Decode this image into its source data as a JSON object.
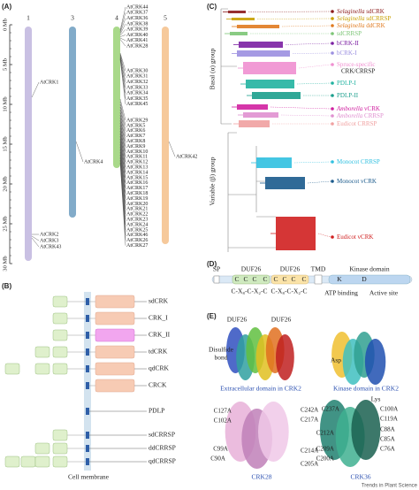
{
  "panel_a": {
    "label": "(A)",
    "axis": [
      "0 Mb",
      "5 Mb",
      "10 Mb",
      "15 Mb",
      "20 Mb",
      "25 Mb",
      "30 Mb"
    ],
    "chromosomes": [
      {
        "number": "1",
        "genes": [
          "AtCRK1",
          "AtCRK2",
          "AtCRK3",
          "AtCRK43"
        ]
      },
      {
        "number": "3",
        "genes": [
          "AtCRK4"
        ]
      },
      {
        "number": "4",
        "genes": [
          "AtCRK44",
          "AtCRK37",
          "AtCRK36",
          "AtCRK38",
          "AtCRK39",
          "AtCRK40",
          "AtCRK41",
          "AtCRK28",
          "AtCRK30",
          "AtCRK31",
          "AtCRK32",
          "AtCRK33",
          "AtCRK34",
          "AtCRK35",
          "AtCRK45",
          "AtCRK29",
          "AtCRK5",
          "AtCRK6",
          "AtCRK7",
          "AtCRK8",
          "AtCRK9",
          "AtCRK10",
          "AtCRK11",
          "AtCRK12",
          "AtCRK13",
          "AtCRK14",
          "AtCRK15",
          "AtCRK16",
          "AtCRK17",
          "AtCRK18",
          "AtCRK19",
          "AtCRK20",
          "AtCRK21",
          "AtCRK22",
          "AtCRK23",
          "AtCRK24",
          "AtCRK25",
          "AtCRK46",
          "AtCRK26",
          "AtCRK27"
        ]
      },
      {
        "number": "5",
        "genes": [
          "AtCRK42"
        ]
      }
    ]
  },
  "panel_b": {
    "label": "(B)",
    "rows": [
      "sdCRK",
      "CRK_I",
      "CRK_II",
      "tdCRK",
      "qdCRK",
      "CRCK",
      "PDLP",
      "sdCRRSP",
      "ddCRRSP",
      "qdCRRSP"
    ],
    "membrane": "Cell membrane"
  },
  "panel_c": {
    "label": "(C)",
    "groups": [
      "Basal (α) group",
      "Variable (β) group"
    ],
    "clades": [
      {
        "species": "Selaginella",
        "name": "sdCRK"
      },
      {
        "species": "Selaginella",
        "name": "sdCRRSP"
      },
      {
        "species": "Selaginella",
        "name": "ddCRK"
      },
      {
        "name": "sdCRRSP"
      },
      {
        "name": "bCRK-II"
      },
      {
        "name": "bCRK-I"
      },
      {
        "name": "Spruce-specific",
        "line2": "CRK/CRRSP"
      },
      {
        "name": "PDLP-I"
      },
      {
        "name": "PDLP-II"
      },
      {
        "species": "Amborella",
        "name": "vCRK"
      },
      {
        "species": "Amborella",
        "name": "CRRSP"
      },
      {
        "name": "Eudicot CRRSP"
      },
      {
        "name": "Monocot CRRSP"
      },
      {
        "name": "Monocot vCRK"
      },
      {
        "name": "Eudicot vCRK"
      }
    ]
  },
  "panel_d": {
    "label": "(D)",
    "domains": [
      "SP",
      "DUF26",
      "DUF26",
      "TMD",
      "Kinase domain"
    ],
    "cysteine": "C",
    "motif": "C-X₈-C-X₂-C",
    "sites": [
      "K",
      "D"
    ],
    "site_names": [
      "ATP binding",
      "Active site"
    ]
  },
  "panel_e": {
    "label": "(E)",
    "top_labels": [
      "DUF26",
      "DUF26",
      "Disulfide",
      "bond",
      "Asp",
      "Lys"
    ],
    "captions": [
      "Extracellular domain in CRK2",
      "Kinase domain in CRK2"
    ],
    "crk28": {
      "name": "CRK28",
      "mutations": [
        "C127A",
        "C102A",
        "C99A",
        "C90A",
        "C242A",
        "C217A",
        "C214A",
        "C205A"
      ]
    },
    "crk36": {
      "name": "CRK36",
      "mutations": [
        "C237A",
        "C212A",
        "C209A",
        "C200A",
        "C100A",
        "C119A",
        "C88A",
        "C85A",
        "C76A"
      ]
    }
  },
  "footer": "Trends in Plant Science"
}
